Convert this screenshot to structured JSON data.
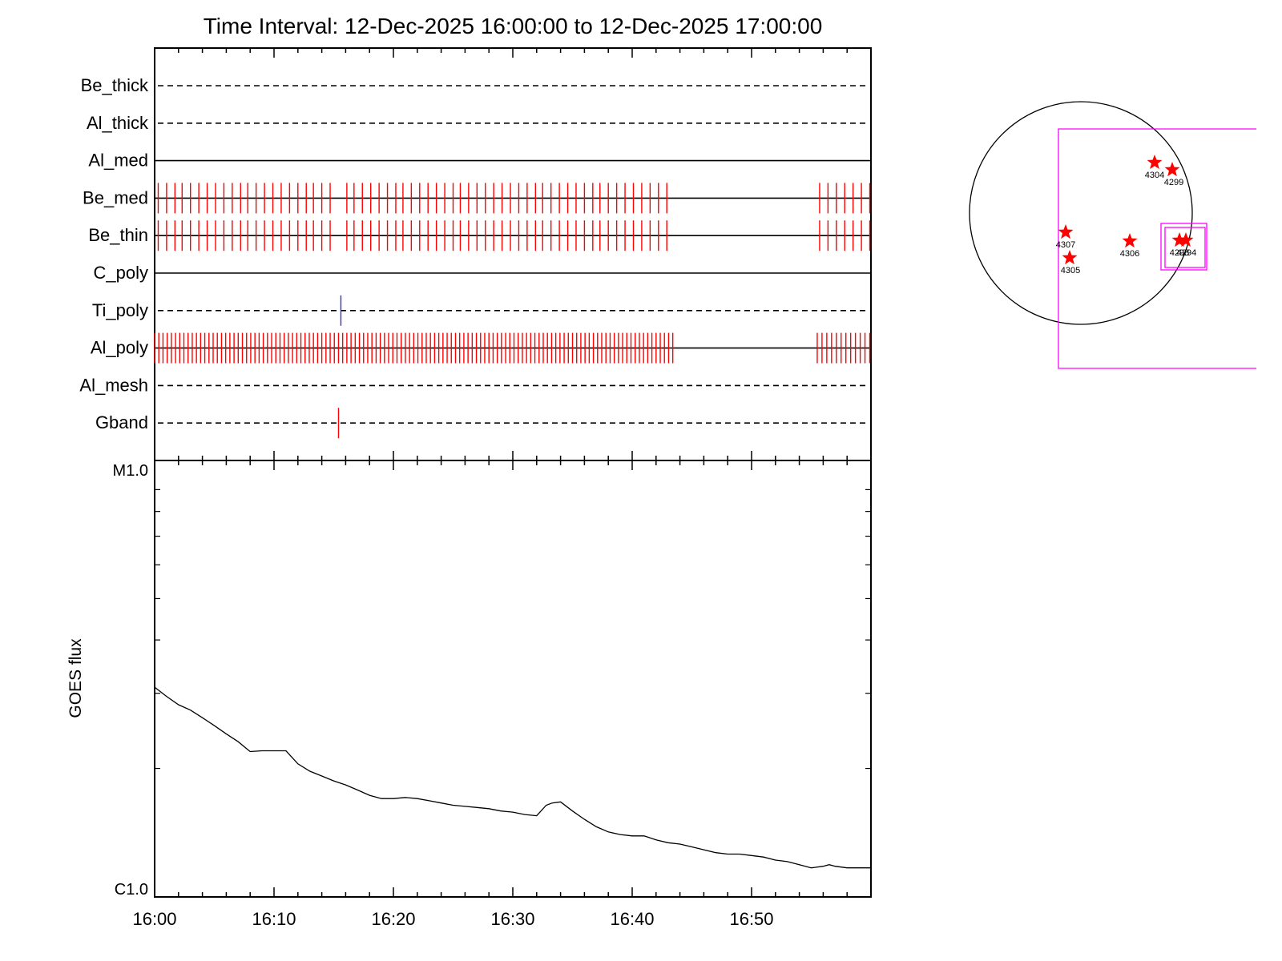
{
  "title": "Time Interval: 12-Dec-2025 16:00:00 to 12-Dec-2025 17:00:00",
  "colors": {
    "exposure": "#ff0000",
    "ti_mark": "#3333cc",
    "fov": "#ff00ff",
    "star": "#ff0000",
    "axis": "#000000"
  },
  "chart_data": [
    {
      "type": "timeline",
      "x_range_minutes": [
        0,
        60
      ],
      "channels": [
        {
          "name": "Be_thick",
          "style": "dashed",
          "color": "#000000",
          "marks": []
        },
        {
          "name": "Al_thick",
          "style": "dashed",
          "color": "#000000",
          "marks": []
        },
        {
          "name": "Al_med",
          "style": "solid",
          "color": "#000000",
          "marks": []
        },
        {
          "name": "Be_med",
          "style": "solid",
          "color": "#ff0000",
          "marks": [
            0.3,
            1.0,
            1.7,
            2.3,
            3.0,
            3.7,
            4.4,
            5.1,
            5.8,
            6.5,
            7.2,
            7.8,
            8.5,
            9.2,
            9.9,
            10.6,
            11.3,
            12.0,
            12.7,
            13.3,
            14.0,
            14.7,
            16.1,
            16.7,
            17.4,
            18.1,
            18.8,
            19.5,
            20.2,
            20.8,
            21.5,
            22.2,
            22.9,
            23.6,
            24.3,
            25.0,
            25.6,
            26.3,
            27.0,
            27.7,
            28.4,
            29.1,
            29.8,
            30.5,
            31.2,
            31.9,
            32.5,
            33.2,
            33.9,
            34.6,
            35.3,
            36.0,
            36.7,
            37.3,
            38.0,
            38.7,
            39.4,
            40.1,
            40.8,
            41.5,
            42.2,
            42.9,
            55.7,
            56.4,
            57.1,
            57.8,
            58.5,
            59.2,
            59.9
          ]
        },
        {
          "name": "Be_thin",
          "style": "solid",
          "color": "#ff0000",
          "marks": [
            0.3,
            1.0,
            1.7,
            2.3,
            3.0,
            3.7,
            4.4,
            5.1,
            5.8,
            6.5,
            7.2,
            7.8,
            8.5,
            9.2,
            9.9,
            10.6,
            11.3,
            12.0,
            12.7,
            13.3,
            14.0,
            14.7,
            16.1,
            16.7,
            17.4,
            18.1,
            18.8,
            19.5,
            20.2,
            20.8,
            21.5,
            22.2,
            22.9,
            23.6,
            24.3,
            25.0,
            25.6,
            26.3,
            27.0,
            27.7,
            28.4,
            29.1,
            29.8,
            30.5,
            31.2,
            31.9,
            32.5,
            33.2,
            33.9,
            34.6,
            35.3,
            36.0,
            36.7,
            37.3,
            38.0,
            38.7,
            39.4,
            40.1,
            40.8,
            41.5,
            42.2,
            42.9,
            55.7,
            56.4,
            57.1,
            57.8,
            58.5,
            59.2,
            59.9
          ]
        },
        {
          "name": "C_poly",
          "style": "solid",
          "color": "#000000",
          "marks": []
        },
        {
          "name": "Ti_poly",
          "style": "dashed",
          "color": "#3333cc",
          "marks": [
            15.6
          ]
        },
        {
          "name": "Al_poly",
          "style": "solid",
          "color": "#ff0000",
          "marks": [
            0.0,
            0.35,
            0.7,
            1.05,
            1.4,
            1.75,
            2.1,
            2.45,
            2.8,
            3.15,
            3.5,
            3.85,
            4.2,
            4.55,
            4.9,
            5.25,
            5.6,
            5.95,
            6.3,
            6.65,
            7.0,
            7.35,
            7.7,
            8.05,
            8.4,
            8.75,
            9.1,
            9.45,
            9.8,
            10.15,
            10.5,
            10.85,
            11.2,
            11.55,
            11.9,
            12.25,
            12.6,
            12.95,
            13.3,
            13.65,
            14.0,
            14.35,
            14.7,
            15.05,
            15.4,
            15.75,
            16.1,
            16.45,
            16.8,
            17.15,
            17.5,
            17.85,
            18.2,
            18.55,
            18.9,
            19.25,
            19.6,
            19.95,
            20.3,
            20.65,
            21.0,
            21.35,
            21.7,
            22.05,
            22.4,
            22.75,
            23.1,
            23.45,
            23.8,
            24.15,
            24.5,
            24.85,
            25.2,
            25.55,
            25.9,
            26.25,
            26.6,
            26.95,
            27.3,
            27.65,
            28.0,
            28.35,
            28.7,
            29.05,
            29.4,
            29.75,
            30.1,
            30.45,
            30.8,
            31.15,
            31.5,
            31.85,
            32.2,
            32.55,
            32.9,
            33.25,
            33.6,
            33.95,
            34.3,
            34.65,
            35.0,
            35.35,
            35.7,
            36.05,
            36.4,
            36.75,
            37.1,
            37.45,
            37.8,
            38.15,
            38.5,
            38.85,
            39.2,
            39.55,
            39.9,
            40.25,
            40.6,
            40.95,
            41.3,
            41.65,
            42.0,
            42.35,
            42.7,
            43.05,
            43.4,
            55.5,
            55.9,
            56.3,
            56.7,
            57.1,
            57.5,
            57.9,
            58.3,
            58.7,
            59.1,
            59.5,
            59.9
          ]
        },
        {
          "name": "Al_mesh",
          "style": "dashed",
          "color": "#000000",
          "marks": []
        },
        {
          "name": "Gband",
          "style": "dashed",
          "color": "#ff0000",
          "marks": [
            15.4
          ]
        }
      ]
    },
    {
      "type": "line",
      "ylabel": "GOES flux",
      "yscale": "log",
      "ylim_labels": [
        "C1.0",
        "M1.0"
      ],
      "ylim": [
        1e-06,
        1e-05
      ],
      "x_tick_labels": [
        "16:00",
        "16:10",
        "16:20",
        "16:30",
        "16:40",
        "16:50"
      ],
      "x_tick_minutes": [
        0,
        10,
        20,
        30,
        40,
        50
      ],
      "x_range_minutes": [
        0,
        60
      ],
      "series": [
        {
          "x_minutes": [
            0,
            1,
            2,
            3,
            4,
            5,
            6,
            7,
            8,
            9,
            10,
            11,
            12,
            13,
            14,
            15,
            16,
            17,
            18,
            19,
            20,
            21,
            22,
            23,
            24,
            25,
            26,
            27,
            28,
            29,
            30,
            31,
            32,
            32.8,
            33.3,
            34,
            35,
            36,
            37,
            38,
            39,
            40,
            41,
            42,
            43,
            44,
            45,
            46,
            47,
            48,
            49,
            50,
            51,
            52,
            53,
            54,
            55,
            56,
            56.5,
            57,
            58,
            59,
            60
          ],
          "values": [
            3.1e-06,
            2.95e-06,
            2.82e-06,
            2.74e-06,
            2.63e-06,
            2.52e-06,
            2.41e-06,
            2.31e-06,
            2.19e-06,
            2.2e-06,
            2.2e-06,
            2.2e-06,
            2.05e-06,
            1.97e-06,
            1.92e-06,
            1.87e-06,
            1.83e-06,
            1.78e-06,
            1.73e-06,
            1.7e-06,
            1.7e-06,
            1.71e-06,
            1.7e-06,
            1.68e-06,
            1.66e-06,
            1.64e-06,
            1.63e-06,
            1.62e-06,
            1.61e-06,
            1.59e-06,
            1.58e-06,
            1.56e-06,
            1.55e-06,
            1.64e-06,
            1.66e-06,
            1.67e-06,
            1.59e-06,
            1.52e-06,
            1.46e-06,
            1.42e-06,
            1.4e-06,
            1.39e-06,
            1.39e-06,
            1.36e-06,
            1.34e-06,
            1.33e-06,
            1.31e-06,
            1.29e-06,
            1.27e-06,
            1.26e-06,
            1.26e-06,
            1.25e-06,
            1.24e-06,
            1.22e-06,
            1.21e-06,
            1.19e-06,
            1.17e-06,
            1.18e-06,
            1.19e-06,
            1.18e-06,
            1.17e-06,
            1.17e-06,
            1.17e-06
          ]
        }
      ]
    }
  ],
  "solar_map": {
    "regions": [
      {
        "label": "4304"
      },
      {
        "label": "4299"
      },
      {
        "label": "4307"
      },
      {
        "label": "4306"
      },
      {
        "label": "4305"
      },
      {
        "label": "4298"
      },
      {
        "label": "4294"
      }
    ]
  }
}
